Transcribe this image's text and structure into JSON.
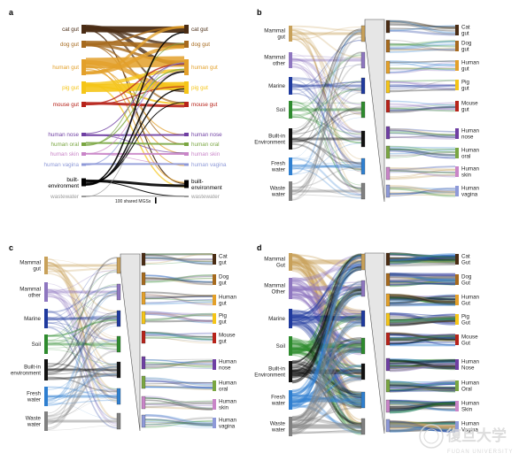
{
  "watermark": {
    "chinese": "復旦大学",
    "english": "FUDAN UNIVERSITY",
    "color": "#d8d8d8"
  },
  "panel_a": {
    "label": "a",
    "left_nodes": [
      {
        "name": "cat gut",
        "color": "#4a2c14"
      },
      {
        "name": "dog gut",
        "color": "#a66a1e"
      },
      {
        "name": "human gut",
        "color": "#e3a02a"
      },
      {
        "name": "pig gut",
        "color": "#f5c518"
      },
      {
        "name": "mouse gut",
        "color": "#b7231a"
      },
      {
        "name": "human nose",
        "color": "#6f3fa3"
      },
      {
        "name": "human oral",
        "color": "#7aa642"
      },
      {
        "name": "human skin",
        "color": "#c985c8"
      },
      {
        "name": "human vagina",
        "color": "#8e99d8"
      },
      {
        "name": "built-\nenvironment",
        "color": "#000000"
      },
      {
        "name": "wastewater",
        "color": "#9a9a9a"
      }
    ],
    "right_nodes": [
      {
        "name": "cat gut",
        "color": "#4a2c14"
      },
      {
        "name": "dog gut",
        "color": "#a66a1e"
      },
      {
        "name": "human gut",
        "color": "#e3a02a"
      },
      {
        "name": "pig gut",
        "color": "#f5c518"
      },
      {
        "name": "mouse gut",
        "color": "#b7231a"
      },
      {
        "name": "human nose",
        "color": "#6f3fa3"
      },
      {
        "name": "human oral",
        "color": "#7aa642"
      },
      {
        "name": "human skin",
        "color": "#c985c8"
      },
      {
        "name": "human vagina",
        "color": "#8e99d8"
      },
      {
        "name": "built-\nenvironment",
        "color": "#000000"
      },
      {
        "name": "wastewater",
        "color": "#9a9a9a"
      }
    ],
    "legend": "100 shared MGSs"
  },
  "panel_b": {
    "label": "b",
    "left_nodes": [
      {
        "name": "Mammal\ngut",
        "color": "#c8a15a"
      },
      {
        "name": "Mammal\nother",
        "color": "#8e76c0"
      },
      {
        "name": "Marine",
        "color": "#1f3a9e"
      },
      {
        "name": "Soil",
        "color": "#2e8b2e"
      },
      {
        "name": "Built-in\nEnvironment",
        "color": "#111111"
      },
      {
        "name": "Fresh\nwater",
        "color": "#2f7fd0"
      },
      {
        "name": "Waste\nwater",
        "color": "#808080"
      }
    ],
    "right_nodes": [
      {
        "name": "Cat\ngut",
        "color": "#4a2c14"
      },
      {
        "name": "Dog\ngut",
        "color": "#a66a1e"
      },
      {
        "name": "Human\ngut",
        "color": "#e3a02a"
      },
      {
        "name": "Pig\ngut",
        "color": "#f5c518"
      },
      {
        "name": "Mouse\ngut",
        "color": "#b7231a"
      },
      {
        "name": "Human\nnose",
        "color": "#6f3fa3"
      },
      {
        "name": "Human\noral",
        "color": "#7aa642"
      },
      {
        "name": "Human\nskin",
        "color": "#c985c8"
      },
      {
        "name": "Human\nvagina",
        "color": "#8e99d8"
      }
    ]
  },
  "panel_c": {
    "label": "c",
    "left_nodes": [
      {
        "name": "Mammal\ngut",
        "color": "#c8a15a"
      },
      {
        "name": "Mammal\nother",
        "color": "#8e76c0"
      },
      {
        "name": "Marine",
        "color": "#1f3a9e"
      },
      {
        "name": "Soil",
        "color": "#2e8b2e"
      },
      {
        "name": "Built-in\nenvironment",
        "color": "#111111"
      },
      {
        "name": "Fresh\nwater",
        "color": "#2f7fd0"
      },
      {
        "name": "Waste\nwater",
        "color": "#808080"
      }
    ],
    "right_nodes": [
      {
        "name": "Cat\ngut",
        "color": "#4a2c14"
      },
      {
        "name": "Dog\ngut",
        "color": "#a66a1e"
      },
      {
        "name": "Human\ngut",
        "color": "#e3a02a"
      },
      {
        "name": "Pig\ngut",
        "color": "#f5c518"
      },
      {
        "name": "Mouse\ngut",
        "color": "#b7231a"
      },
      {
        "name": "Human\nnose",
        "color": "#6f3fa3"
      },
      {
        "name": "Human\noral",
        "color": "#7aa642"
      },
      {
        "name": "Human\nskin",
        "color": "#c985c8"
      },
      {
        "name": "Human\nvagina",
        "color": "#8e99d8"
      }
    ]
  },
  "panel_d": {
    "label": "d",
    "left_nodes": [
      {
        "name": "Mammal\nGut",
        "color": "#c8a15a"
      },
      {
        "name": "Mammal\nOther",
        "color": "#8e76c0"
      },
      {
        "name": "Marine",
        "color": "#1f3a9e"
      },
      {
        "name": "Soil",
        "color": "#2e8b2e"
      },
      {
        "name": "Built-in\nEnvironment",
        "color": "#111111"
      },
      {
        "name": "Fresh\nwater",
        "color": "#2f7fd0"
      },
      {
        "name": "Waste\nwater",
        "color": "#808080"
      }
    ],
    "right_nodes": [
      {
        "name": "Cat\nGut",
        "color": "#4a2c14"
      },
      {
        "name": "Dog\nGut",
        "color": "#a66a1e"
      },
      {
        "name": "Human\nGut",
        "color": "#e3a02a"
      },
      {
        "name": "Pig\nGut",
        "color": "#f5c518"
      },
      {
        "name": "Mouse\nGut",
        "color": "#b7231a"
      },
      {
        "name": "Human\nNose",
        "color": "#6f3fa3"
      },
      {
        "name": "Human\nOral",
        "color": "#7aa642"
      },
      {
        "name": "Human\nSkin",
        "color": "#c985c8"
      },
      {
        "name": "Human\nVagina",
        "color": "#8e99d8"
      }
    ]
  }
}
